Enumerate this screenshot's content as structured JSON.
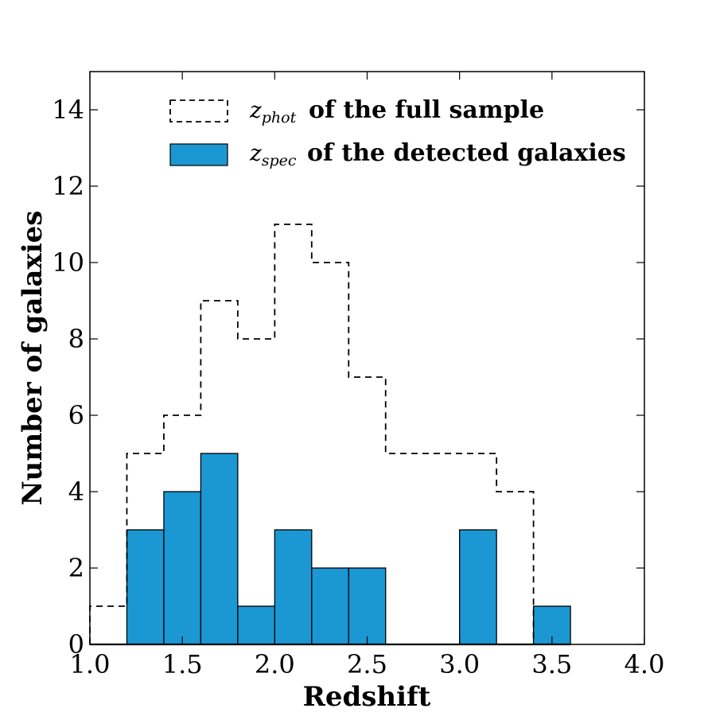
{
  "chart_data": {
    "type": "bar",
    "title": "",
    "xlabel": "Redshift",
    "ylabel": "Number of galaxies",
    "xlim": [
      1.0,
      4.0
    ],
    "ylim": [
      0,
      15
    ],
    "x_ticks": [
      "1.0",
      "1.5",
      "2.0",
      "2.5",
      "3.0",
      "3.5",
      "4.0"
    ],
    "y_ticks": [
      "0",
      "2",
      "4",
      "6",
      "8",
      "10",
      "12",
      "14"
    ],
    "bin_edges": [
      1.0,
      1.2,
      1.4,
      1.6,
      1.8,
      2.0,
      2.2,
      2.4,
      2.6,
      2.8,
      3.0,
      3.2,
      3.4,
      3.6
    ],
    "grid": false,
    "legend_position": "top-left",
    "series": [
      {
        "name": "z_phot of the full sample",
        "legend_symbol": "z",
        "legend_subscript": "phot",
        "legend_label": "of the full sample",
        "style": "dashed-step",
        "color": "#000000",
        "values": [
          1,
          5,
          6,
          9,
          8,
          11,
          10,
          7,
          5,
          5,
          5,
          4,
          0
        ]
      },
      {
        "name": "z_spec of the detected galaxies",
        "legend_symbol": "z",
        "legend_subscript": "spec",
        "legend_label": "of the detected galaxies",
        "style": "filled",
        "color": "#1b98d3",
        "values": [
          0,
          3,
          4,
          5,
          1,
          3,
          2,
          2,
          0,
          0,
          3,
          0,
          1
        ]
      }
    ]
  }
}
